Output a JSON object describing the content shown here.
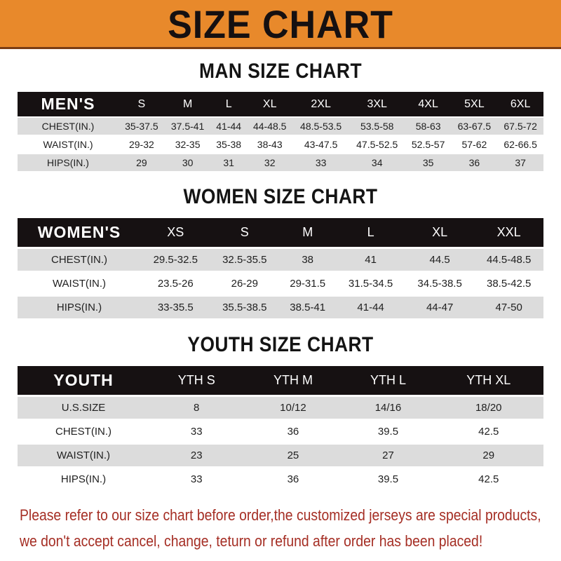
{
  "banner": {
    "title": "SIZE CHART"
  },
  "chart_data": [
    {
      "type": "table",
      "key": "men",
      "title": "MAN SIZE CHART",
      "header_label": "MEN'S",
      "columns": [
        "S",
        "M",
        "L",
        "XL",
        "2XL",
        "3XL",
        "4XL",
        "5XL",
        "6XL"
      ],
      "rows": [
        {
          "label": "CHEST(IN.)",
          "values": [
            "35-37.5",
            "37.5-41",
            "41-44",
            "44-48.5",
            "48.5-53.5",
            "53.5-58",
            "58-63",
            "63-67.5",
            "67.5-72"
          ]
        },
        {
          "label": "WAIST(IN.)",
          "values": [
            "29-32",
            "32-35",
            "35-38",
            "38-43",
            "43-47.5",
            "47.5-52.5",
            "52.5-57",
            "57-62",
            "62-66.5"
          ]
        },
        {
          "label": "HIPS(IN.)",
          "values": [
            "29",
            "30",
            "31",
            "32",
            "33",
            "34",
            "35",
            "36",
            "37"
          ]
        }
      ]
    },
    {
      "type": "table",
      "key": "women",
      "title": "WOMEN SIZE CHART",
      "header_label": "WOMEN'S",
      "columns": [
        "XS",
        "S",
        "M",
        "L",
        "XL",
        "XXL"
      ],
      "rows": [
        {
          "label": "CHEST(IN.)",
          "values": [
            "29.5-32.5",
            "32.5-35.5",
            "38",
            "41",
            "44.5",
            "44.5-48.5"
          ]
        },
        {
          "label": "WAIST(IN.)",
          "values": [
            "23.5-26",
            "26-29",
            "29-31.5",
            "31.5-34.5",
            "34.5-38.5",
            "38.5-42.5"
          ]
        },
        {
          "label": "HIPS(IN.)",
          "values": [
            "33-35.5",
            "35.5-38.5",
            "38.5-41",
            "41-44",
            "44-47",
            "47-50"
          ]
        }
      ]
    },
    {
      "type": "table",
      "key": "youth",
      "title": "YOUTH SIZE CHART",
      "header_label": "YOUTH",
      "columns": [
        "YTH S",
        "YTH M",
        "YTH L",
        "YTH XL"
      ],
      "rows": [
        {
          "label": "U.S.SIZE",
          "values": [
            "8",
            "10/12",
            "14/16",
            "18/20"
          ]
        },
        {
          "label": "CHEST(IN.)",
          "values": [
            "33",
            "36",
            "39.5",
            "42.5"
          ]
        },
        {
          "label": "WAIST(IN.)",
          "values": [
            "23",
            "25",
            "27",
            "29"
          ]
        },
        {
          "label": "HIPS(IN.)",
          "values": [
            "33",
            "36",
            "39.5",
            "42.5"
          ]
        }
      ]
    }
  ],
  "footer": {
    "line1": "Please refer to our size chart before order,the customized jerseys are special products,",
    "line2": "we don't accept cancel, change, teturn or refund after order has been placed!"
  },
  "colors": {
    "banner_bg": "#E8892B",
    "banner_border": "#7A3D15",
    "banner_text": "#151011",
    "table_header_bg": "#161112",
    "table_header_text": "#FFFFFF",
    "row_shaded_bg": "#DCDCDC",
    "row_plain_bg": "#FFFFFF",
    "cell_text": "#1F1F1F",
    "note_text": "#A52E24"
  }
}
